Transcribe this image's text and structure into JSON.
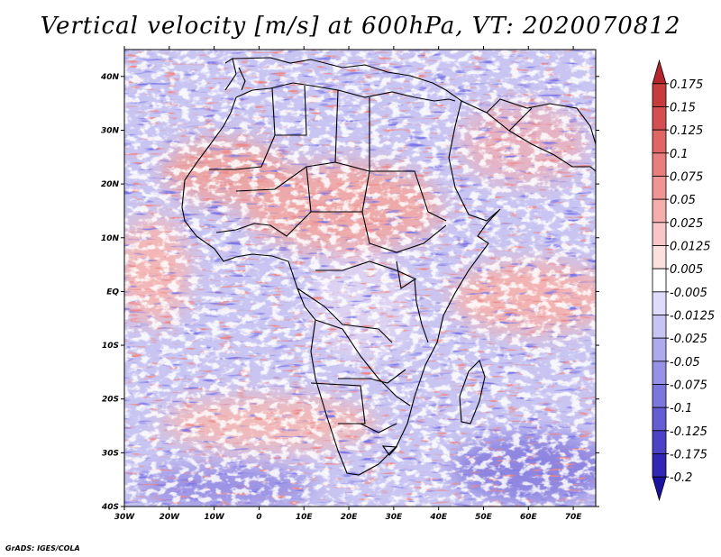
{
  "title": "Vertical velocity [m/s] at 600hPa, VT: 2020070812",
  "credit": "GrADS: IGES/COLA",
  "map": {
    "lon_range": [
      -30,
      75
    ],
    "lat_range": [
      -40,
      45
    ],
    "lon_ticks": [
      "30W",
      "20W",
      "10W",
      "0",
      "10E",
      "20E",
      "30E",
      "40E",
      "50E",
      "60E",
      "70E"
    ],
    "lat_ticks": [
      "40N",
      "30N",
      "20N",
      "10N",
      "EQ",
      "10S",
      "20S",
      "30S",
      "40S"
    ]
  },
  "colorbar": {
    "labels": [
      "0.175",
      "0.15",
      "0.125",
      "0.1",
      "0.075",
      "0.05",
      "0.025",
      "0.0125",
      "0.005",
      "-0.005",
      "-0.0125",
      "-0.025",
      "-0.05",
      "-0.075",
      "-0.1",
      "-0.125",
      "-0.175",
      "-0.2"
    ],
    "colors": [
      "#b5252e",
      "#c63b3b",
      "#d45050",
      "#e06666",
      "#e87e7e",
      "#ef9595",
      "#f4aeae",
      "#f8c6c6",
      "#fbe0e0",
      "#ffffff",
      "#dedcfa",
      "#c7c4f4",
      "#afaaee",
      "#9792e6",
      "#7d77dd",
      "#645dd3",
      "#4b42c6",
      "#3226b4",
      "#1c12a2"
    ]
  }
}
